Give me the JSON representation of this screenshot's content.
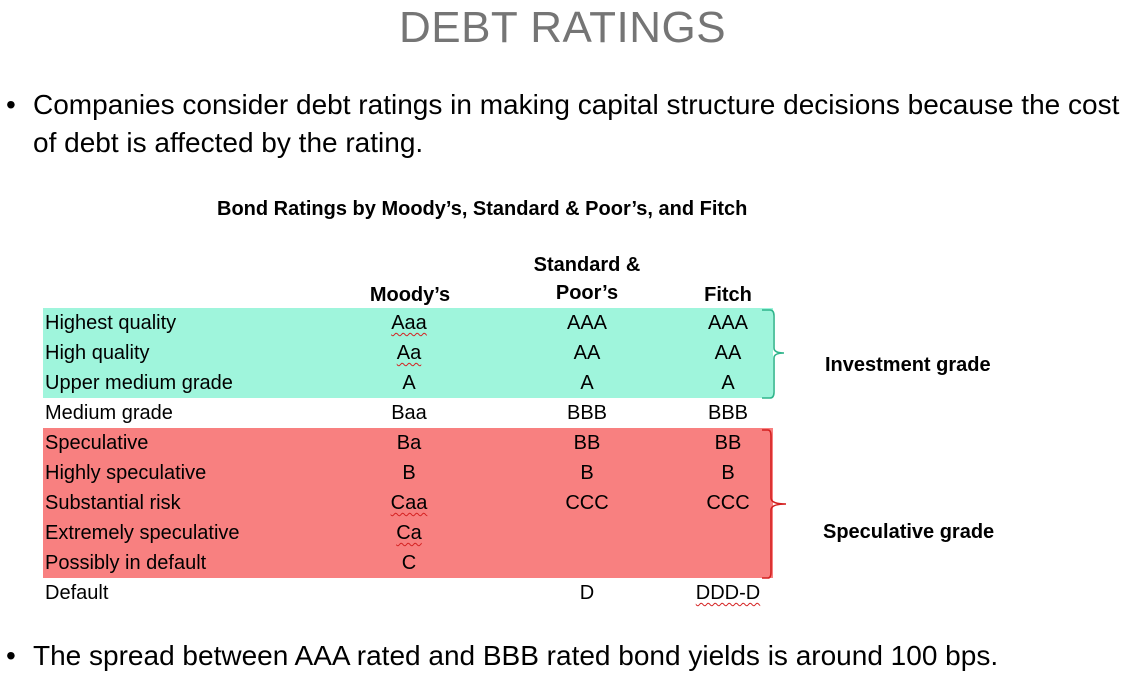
{
  "title": "DEBT RATINGS",
  "bullets": [
    "Companies consider debt ratings in making capital structure decisions because the cost of debt is affected by the rating.",
    "The spread between AAA rated and BBB rated bond yields is around 100 bps."
  ],
  "bullet_glyph": "•",
  "table": {
    "title": "Bond Ratings by Moody’s, Standard & Poor’s, and Fitch",
    "headers": {
      "moodys": "Moody’s",
      "sp": "Standard & Poor’s",
      "fitch": "Fitch"
    },
    "rows": [
      {
        "label": "Highest quality",
        "moodys": "Aaa",
        "sp": "AAA",
        "fitch": "AAA",
        "band": "investment"
      },
      {
        "label": "High quality",
        "moodys": "Aa",
        "sp": "AA",
        "fitch": "AA",
        "band": "investment"
      },
      {
        "label": "Upper medium grade",
        "moodys": "A",
        "sp": "A",
        "fitch": "A",
        "band": "investment"
      },
      {
        "label": "Medium grade",
        "moodys": "Baa",
        "sp": "BBB",
        "fitch": "BBB",
        "band": "none"
      },
      {
        "label": "Speculative",
        "moodys": "Ba",
        "sp": "BB",
        "fitch": "BB",
        "band": "speculative"
      },
      {
        "label": "Highly speculative",
        "moodys": "B",
        "sp": "B",
        "fitch": "B",
        "band": "speculative"
      },
      {
        "label": "Substantial risk",
        "moodys": "Caa",
        "sp": "CCC",
        "fitch": "CCC",
        "band": "speculative"
      },
      {
        "label": "Extremely speculative",
        "moodys": "Ca",
        "sp": "",
        "fitch": "",
        "band": "speculative"
      },
      {
        "label": "Possibly in default",
        "moodys": "C",
        "sp": "",
        "fitch": "",
        "band": "speculative"
      },
      {
        "label": "Default",
        "moodys": "",
        "sp": "D",
        "fitch": "DDD-D",
        "band": "none"
      }
    ],
    "groups": {
      "investment": "Investment grade",
      "speculative": "Speculative grade"
    }
  },
  "colors": {
    "investment_band": "#9ff5dc",
    "speculative_band": "#f88080",
    "investment_brace": "#2fb58b",
    "speculative_brace": "#d42020",
    "title_text": "#757575"
  }
}
